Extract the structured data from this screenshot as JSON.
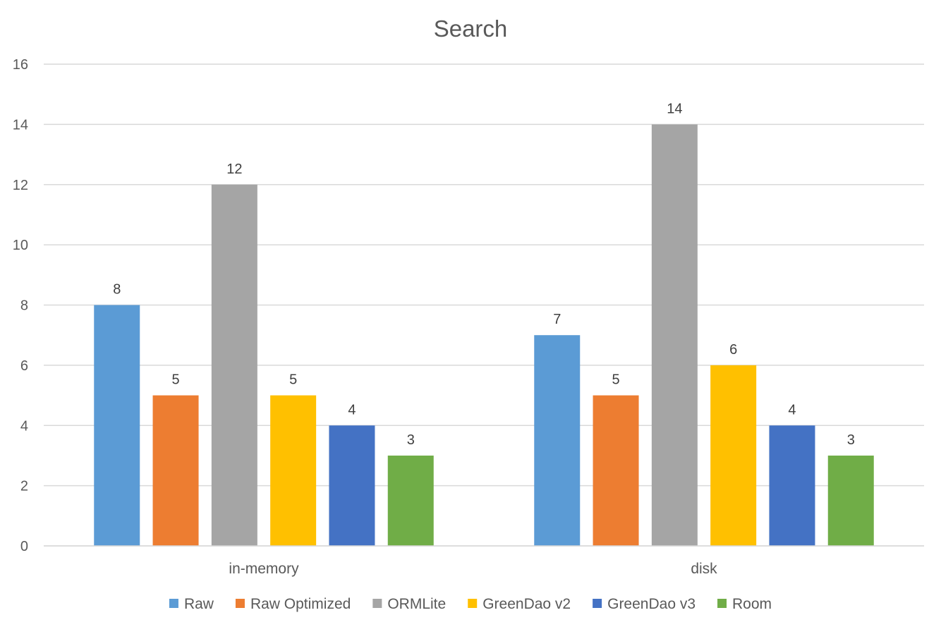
{
  "chart_data": {
    "type": "bar",
    "title": "Search",
    "xlabel": "",
    "ylabel": "",
    "ylim": [
      0,
      16
    ],
    "ytick_step": 2,
    "grid": true,
    "legend_position": "bottom",
    "categories": [
      "in-memory",
      "disk"
    ],
    "series": [
      {
        "name": "Raw",
        "color": "#5b9bd5",
        "values": [
          8,
          7
        ]
      },
      {
        "name": "Raw Optimized",
        "color": "#ed7d31",
        "values": [
          5,
          5
        ]
      },
      {
        "name": "ORMLite",
        "color": "#a5a5a5",
        "values": [
          12,
          14
        ]
      },
      {
        "name": "GreenDao v2",
        "color": "#ffc000",
        "values": [
          5,
          6
        ]
      },
      {
        "name": "GreenDao v3",
        "color": "#4472c4",
        "values": [
          4,
          4
        ]
      },
      {
        "name": "Room",
        "color": "#70ad47",
        "values": [
          3,
          3
        ]
      }
    ],
    "data_labels": true
  }
}
